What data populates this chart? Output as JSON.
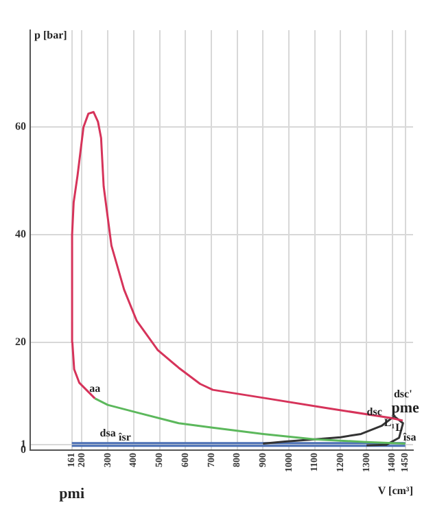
{
  "chart_data": {
    "type": "line",
    "xlabel": "V [cm³]",
    "ylabel": "p [bar]",
    "xlim": [
      0,
      1480
    ],
    "ylim": [
      0,
      78
    ],
    "xticks": [
      161,
      200,
      300,
      400,
      500,
      600,
      700,
      800,
      900,
      1000,
      1100,
      1200,
      1300,
      1400,
      1450
    ],
    "yticks": [
      0,
      1,
      20,
      40,
      60
    ],
    "grid": true,
    "legend": false,
    "marker": "none",
    "line_style": "solid",
    "series": [
      {
        "color": "#d6335a",
        "x": [
          250,
          190,
          170,
          163,
          162,
          168,
          183,
          206,
          225,
          245,
          262,
          274,
          284,
          314,
          363,
          412,
          493,
          574,
          657,
          706,
          902,
          1147,
          1392,
          1440
        ],
        "values": [
          9.6,
          12.5,
          15,
          20,
          40,
          46,
          51,
          60,
          62.5,
          62.8,
          61,
          58,
          49,
          38,
          29.8,
          24,
          18.6,
          15.3,
          12.3,
          11.2,
          9.7,
          7.8,
          6.0,
          5.5
        ]
      },
      {
        "color": "#5cb85c",
        "x": [
          250,
          300,
          412,
          574,
          700,
          900,
          1100,
          1300,
          1450
        ],
        "values": [
          9.6,
          8.4,
          7,
          5,
          4.2,
          3,
          2,
          1.5,
          1.2
        ]
      },
      {
        "color": "#333333",
        "x": [
          900,
          985,
          1100,
          1200,
          1279,
          1358,
          1407,
          1441,
          1426,
          1377,
          1300
        ],
        "values": [
          1.2,
          1.6,
          2,
          2.4,
          3,
          4.5,
          6.3,
          5,
          2.3,
          1,
          0.9
        ]
      },
      {
        "color": "#4a6fb5",
        "x": [
          161,
          1450
        ],
        "values": [
          1.3,
          1.3
        ]
      },
      {
        "color": "#4a6fb5",
        "x": [
          161,
          1450
        ],
        "values": [
          0.8,
          0.8
        ]
      }
    ],
    "annotations": [
      {
        "text": "aa",
        "x": 250,
        "y": 9.6
      },
      {
        "text": "dsa",
        "x": 300,
        "y": 1.3
      },
      {
        "text": "îsr",
        "x": 300,
        "y": 0.8
      },
      {
        "text": "pmi",
        "x": 161,
        "y": 0
      },
      {
        "text": "pme",
        "x": 1450,
        "y": 6
      },
      {
        "text": "dsc",
        "x": 1392,
        "y": 6
      },
      {
        "text": "dsc'",
        "x": 1441,
        "y": 5
      },
      {
        "text": "L₁",
        "x": 1441,
        "y": 4
      },
      {
        "text": "L",
        "x": 1426,
        "y": 2.3
      },
      {
        "text": "îsa",
        "x": 1400,
        "y": 0.8
      }
    ]
  }
}
